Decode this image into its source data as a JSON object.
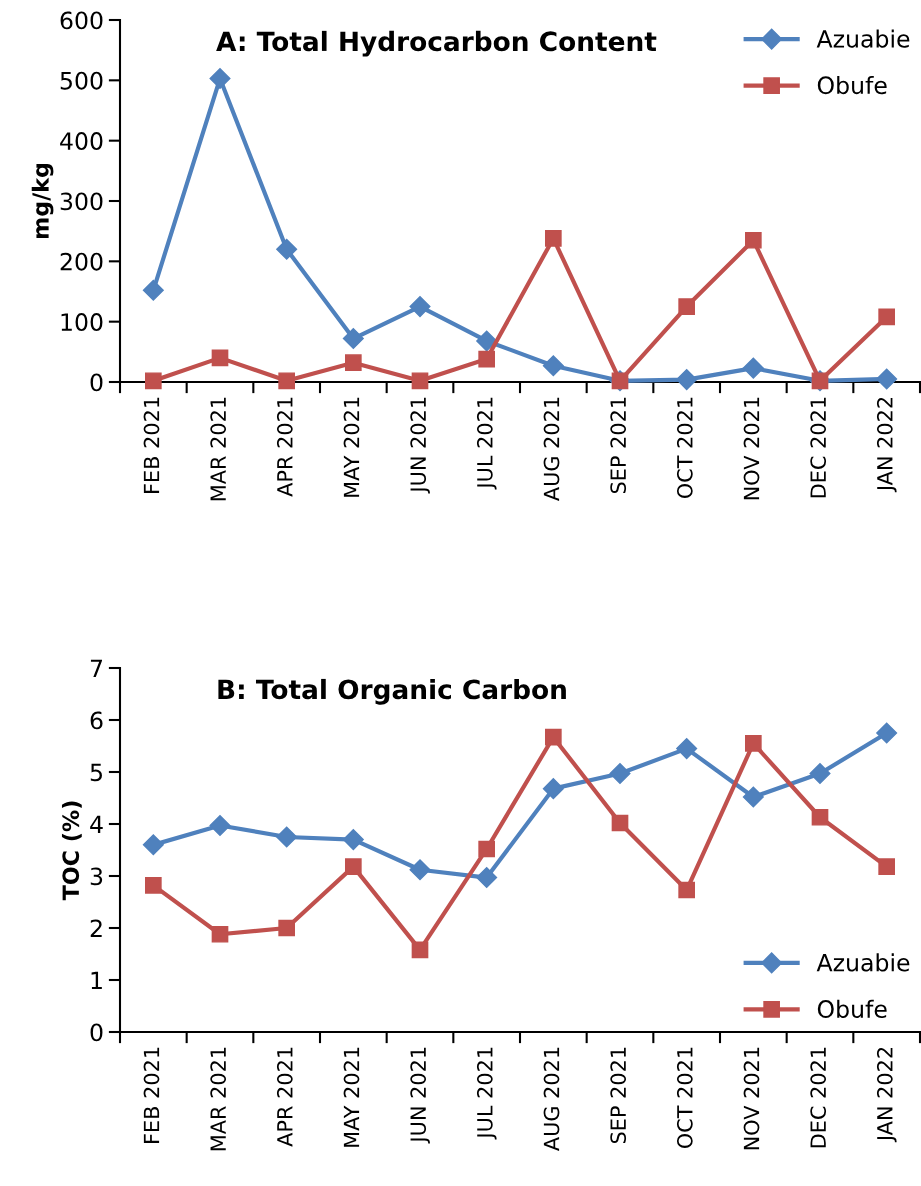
{
  "chart_data": [
    {
      "type": "line",
      "title": "A: Total Hydrocarbon Content",
      "ylabel": "mg/kg",
      "categories": [
        "FEB 2021",
        "MAR 2021",
        "APR 2021",
        "MAY 2021",
        "JUN 2021",
        "JUL 2021",
        "AUG 2021",
        "SEP 2021",
        "OCT 2021",
        "NOV 2021",
        "DEC 2021",
        "JAN 2022"
      ],
      "series": [
        {
          "name": "Azuabie",
          "color": "#4f81bd",
          "marker": "diamond",
          "values": [
            152,
            503,
            220,
            72,
            125,
            68,
            27,
            2,
            4,
            23,
            2,
            5
          ]
        },
        {
          "name": "Obufe",
          "color": "#c0504d",
          "marker": "square",
          "values": [
            2,
            40,
            2,
            32,
            2,
            38,
            238,
            2,
            125,
            235,
            2,
            108
          ]
        }
      ],
      "ylim": [
        0,
        600
      ],
      "yticks": [
        0,
        100,
        200,
        300,
        400,
        500,
        600
      ],
      "grid": false,
      "legend": "top right",
      "line_style": "solid"
    },
    {
      "type": "line",
      "title": "B: Total Organic Carbon",
      "ylabel": "TOC (%)",
      "categories": [
        "FEB 2021",
        "MAR 2021",
        "APR 2021",
        "MAY 2021",
        "JUN 2021",
        "JUL 2021",
        "AUG 2021",
        "SEP 2021",
        "OCT 2021",
        "NOV 2021",
        "DEC 2021",
        "JAN 2022"
      ],
      "series": [
        {
          "name": "Azuabie",
          "color": "#4f81bd",
          "marker": "diamond",
          "values": [
            3.6,
            3.97,
            3.75,
            3.7,
            3.12,
            2.97,
            4.68,
            4.97,
            5.45,
            4.52,
            4.97,
            5.75
          ]
        },
        {
          "name": "Obufe",
          "color": "#c0504d",
          "marker": "square",
          "values": [
            2.82,
            1.88,
            2.0,
            3.18,
            1.58,
            3.52,
            5.67,
            4.02,
            2.73,
            5.55,
            4.13,
            3.18
          ]
        }
      ],
      "ylim": [
        0,
        7
      ],
      "yticks": [
        0,
        1,
        2,
        3,
        4,
        5,
        6,
        7
      ],
      "grid": false,
      "legend": "bottom right",
      "line_style": "solid"
    }
  ]
}
